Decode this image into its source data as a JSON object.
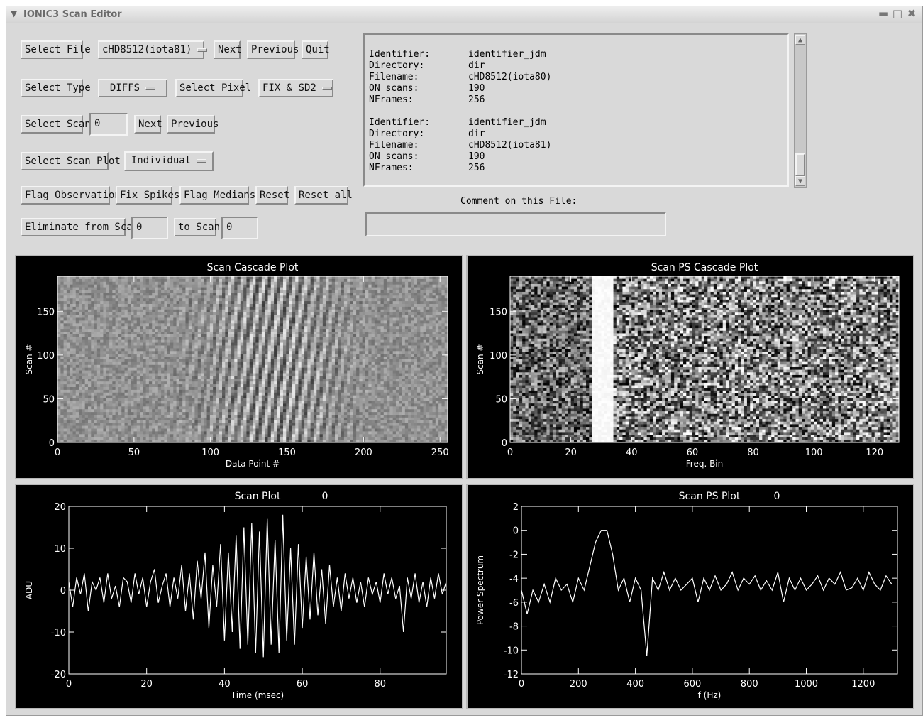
{
  "window": {
    "title": "IONIC3 Scan Editor"
  },
  "controls": {
    "select_file": "Select File",
    "file_dropdown": "cHD8512(iota81)",
    "next": "Next",
    "previous": "Previous",
    "quit": "Quit",
    "select_type": "Select Type",
    "type_dropdown": "DIFFS",
    "select_pixel": "Select Pixel",
    "pixel_dropdown": "FIX & SD2",
    "select_scan": "Select Scan",
    "scan_value": "0",
    "scan_next": "Next",
    "scan_previous": "Previous",
    "select_scan_plot": "Select Scan Plot",
    "scan_plot_dropdown": "Individual",
    "flag_observation": "Flag Observation",
    "fix_spikes": "Fix Spikes",
    "flag_medians": "Flag Medians",
    "reset": "Reset",
    "reset_all": "Reset all",
    "eliminate_from_scan": "Eliminate from Scan",
    "eliminate_from_value": "0",
    "to_scan": "to Scan",
    "to_scan_value": "0"
  },
  "info": {
    "entries": [
      {
        "identifier_label": "Identifier:",
        "identifier": "identifier_jdm",
        "directory_label": "Directory:",
        "directory": "dir",
        "filename_label": "Filename:",
        "filename": "cHD8512(iota80)",
        "on_scans_label": "ON scans:",
        "on_scans": "190",
        "nframes_label": "NFrames:",
        "nframes": "256"
      },
      {
        "identifier_label": "Identifier:",
        "identifier": "identifier_jdm",
        "directory_label": "Directory:",
        "directory": "dir",
        "filename_label": "Filename:",
        "filename": "cHD8512(iota81)",
        "on_scans_label": "ON scans:",
        "on_scans": "190",
        "nframes_label": "NFrames:",
        "nframes": "256"
      }
    ],
    "comment_label": "Comment on this File:",
    "comment_value": ""
  },
  "chart_data": [
    {
      "type": "heatmap",
      "title": "Scan Cascade Plot",
      "xlabel": "Data Point #",
      "ylabel": "Scan #",
      "xlim": [
        0,
        255
      ],
      "ylim": [
        0,
        190
      ],
      "x_ticks": [
        0,
        50,
        100,
        150,
        200,
        250
      ],
      "y_ticks": [
        0,
        50,
        100,
        150
      ]
    },
    {
      "type": "heatmap",
      "title": "Scan PS Cascade Plot",
      "xlabel": "Freq. Bin",
      "ylabel": "Scan #",
      "xlim": [
        0,
        128
      ],
      "ylim": [
        0,
        190
      ],
      "x_ticks": [
        0,
        20,
        40,
        60,
        80,
        100,
        120
      ],
      "y_ticks": [
        0,
        50,
        100,
        150
      ]
    },
    {
      "type": "line",
      "title": "Scan Plot",
      "title_value": "0",
      "xlabel": "Time (msec)",
      "ylabel": "ADU",
      "xlim": [
        0,
        97
      ],
      "ylim": [
        -20,
        20
      ],
      "x_ticks": [
        0,
        20,
        40,
        60,
        80
      ],
      "y_ticks": [
        -20,
        -10,
        0,
        10,
        20
      ],
      "x": [
        0,
        1,
        2,
        3,
        4,
        5,
        6,
        7,
        8,
        9,
        10,
        11,
        12,
        13,
        14,
        15,
        16,
        17,
        18,
        19,
        20,
        21,
        22,
        23,
        24,
        25,
        26,
        27,
        28,
        29,
        30,
        31,
        32,
        33,
        34,
        35,
        36,
        37,
        38,
        39,
        40,
        41,
        42,
        43,
        44,
        45,
        46,
        47,
        48,
        49,
        50,
        51,
        52,
        53,
        54,
        55,
        56,
        57,
        58,
        59,
        60,
        61,
        62,
        63,
        64,
        65,
        66,
        67,
        68,
        69,
        70,
        71,
        72,
        73,
        74,
        75,
        76,
        77,
        78,
        79,
        80,
        81,
        82,
        83,
        84,
        85,
        86,
        87,
        88,
        89,
        90,
        91,
        92,
        93,
        94,
        95,
        96,
        97
      ],
      "y": [
        2,
        -4,
        3,
        -1,
        4,
        -5,
        2,
        0,
        3,
        -3,
        4,
        -2,
        1,
        -4,
        3,
        2,
        -3,
        4,
        -1,
        3,
        -4,
        2,
        5,
        -3,
        1,
        4,
        -4,
        3,
        -2,
        6,
        -5,
        4,
        -7,
        7,
        -2,
        9,
        -9,
        6,
        -4,
        11,
        -12,
        9,
        -10,
        13,
        -14,
        15,
        -13,
        16,
        -15,
        14,
        -16,
        17,
        -13,
        12,
        -15,
        18,
        -12,
        10,
        -13,
        11,
        -9,
        8,
        -7,
        9,
        -6,
        5,
        -8,
        6,
        -4,
        3,
        -5,
        4,
        -2,
        3,
        -3,
        2,
        -4,
        3,
        -1,
        2,
        -3,
        4,
        -1,
        3,
        -2,
        1,
        -10,
        3,
        -2,
        4,
        -3,
        2,
        -4,
        3,
        -2,
        4,
        -1,
        2
      ]
    },
    {
      "type": "line",
      "title": "Scan PS Plot",
      "title_value": "0",
      "xlabel": "f (Hz)",
      "ylabel": "Power Spectrum",
      "xlim": [
        0,
        1320
      ],
      "ylim": [
        -12,
        2
      ],
      "x_ticks": [
        0,
        200,
        400,
        600,
        800,
        1000,
        1200
      ],
      "y_ticks": [
        -12,
        -10,
        -8,
        -6,
        -4,
        -2,
        0,
        2
      ],
      "x": [
        0,
        20,
        40,
        60,
        80,
        100,
        120,
        140,
        160,
        180,
        200,
        220,
        240,
        260,
        280,
        300,
        320,
        340,
        360,
        380,
        400,
        420,
        440,
        460,
        480,
        500,
        520,
        540,
        560,
        580,
        600,
        620,
        640,
        660,
        680,
        700,
        720,
        740,
        760,
        780,
        800,
        820,
        840,
        860,
        880,
        900,
        920,
        940,
        960,
        980,
        1000,
        1020,
        1040,
        1060,
        1080,
        1100,
        1120,
        1140,
        1160,
        1180,
        1200,
        1220,
        1240,
        1260,
        1280,
        1300
      ],
      "y": [
        -5,
        -7,
        -5,
        -6,
        -4.5,
        -6,
        -4,
        -5,
        -4.5,
        -6,
        -4,
        -5,
        -3,
        -1,
        0,
        0,
        -2,
        -5,
        -4,
        -6,
        -4,
        -5,
        -10.5,
        -4,
        -5,
        -3.5,
        -5,
        -4,
        -5,
        -4.5,
        -4,
        -6,
        -4,
        -5,
        -3.8,
        -5,
        -4.5,
        -3.5,
        -5,
        -4,
        -4.5,
        -3.8,
        -5,
        -4.2,
        -5,
        -3.5,
        -6,
        -4,
        -5,
        -4,
        -5,
        -4.5,
        -3.8,
        -5,
        -4,
        -4.5,
        -3.5,
        -5,
        -4.8,
        -4,
        -5,
        -3.5,
        -4.5,
        -5,
        -3.8,
        -4.5
      ]
    }
  ]
}
